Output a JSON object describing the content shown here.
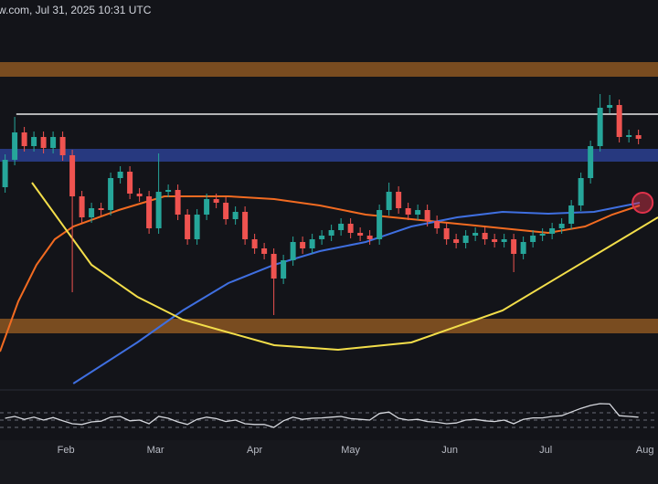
{
  "header": {
    "text": "w.com, Jul 31, 2025 10:31 UTC"
  },
  "chart_data": {
    "type": "candlestick",
    "up_color": "#26a69a",
    "down_color": "#ef5350",
    "xlim": [
      10.4,
      216.1
    ],
    "xticks": [
      {
        "value": 31,
        "label": "Feb"
      },
      {
        "value": 59,
        "label": "Mar"
      },
      {
        "value": 90,
        "label": "Apr"
      },
      {
        "value": 120,
        "label": "May"
      },
      {
        "value": 151,
        "label": "Jun"
      },
      {
        "value": 181,
        "label": "Jul"
      },
      {
        "value": 212,
        "label": "Aug"
      }
    ],
    "ylim": [
      60,
      144
    ],
    "x": [
      12,
      15,
      18,
      21,
      24,
      27,
      30,
      33,
      36,
      39,
      42,
      45,
      48,
      51,
      54,
      57,
      60,
      63,
      66,
      69,
      72,
      75,
      78,
      81,
      84,
      87,
      90,
      93,
      96,
      99,
      102,
      105,
      108,
      111,
      114,
      117,
      120,
      123,
      126,
      129,
      132,
      135,
      138,
      141,
      144,
      147,
      150,
      153,
      156,
      159,
      162,
      165,
      168,
      171,
      174,
      177,
      180,
      183,
      186,
      189,
      192,
      195,
      198,
      201,
      204,
      207,
      210
    ],
    "candles": [
      [
        103.0,
        110.2,
        101.8,
        109.0
      ],
      [
        109.0,
        118.4,
        107.8,
        115.0
      ],
      [
        115.0,
        116.2,
        110.8,
        112.0
      ],
      [
        112.0,
        115.2,
        110.8,
        114.0
      ],
      [
        114.0,
        115.2,
        110.4,
        111.6
      ],
      [
        111.6,
        115.2,
        110.4,
        114.0
      ],
      [
        114.0,
        115.2,
        108.8,
        110.0
      ],
      [
        110.0,
        111.2,
        80.0,
        101.0
      ],
      [
        101.0,
        102.2,
        95.2,
        96.4
      ],
      [
        96.4,
        99.6,
        95.2,
        98.4
      ],
      [
        98.4,
        99.6,
        96.8,
        98.0
      ],
      [
        98.0,
        106.2,
        96.8,
        105.0
      ],
      [
        105.0,
        107.6,
        103.8,
        106.4
      ],
      [
        106.4,
        107.6,
        100.4,
        101.6
      ],
      [
        101.6,
        102.8,
        99.8,
        101.0
      ],
      [
        101.0,
        102.2,
        92.8,
        94.0
      ],
      [
        94.0,
        110.4,
        92.8,
        102.0
      ],
      [
        102.0,
        103.6,
        100.8,
        102.4
      ],
      [
        102.4,
        103.6,
        95.8,
        97.0
      ],
      [
        97.0,
        98.2,
        90.4,
        91.6
      ],
      [
        91.6,
        98.2,
        90.4,
        97.0
      ],
      [
        97.0,
        101.6,
        95.8,
        100.4
      ],
      [
        100.4,
        101.6,
        98.4,
        99.6
      ],
      [
        99.6,
        100.8,
        94.8,
        96.0
      ],
      [
        96.0,
        98.8,
        94.8,
        97.6
      ],
      [
        97.6,
        98.8,
        90.4,
        91.6
      ],
      [
        91.6,
        92.8,
        88.4,
        89.6
      ],
      [
        89.6,
        90.8,
        87.2,
        88.4
      ],
      [
        88.4,
        89.6,
        75.0,
        83.0
      ],
      [
        83.0,
        88.2,
        81.8,
        87.0
      ],
      [
        87.0,
        92.2,
        85.8,
        91.0
      ],
      [
        91.0,
        92.2,
        88.4,
        89.6
      ],
      [
        89.6,
        92.8,
        88.4,
        91.6
      ],
      [
        91.6,
        93.6,
        90.4,
        92.4
      ],
      [
        92.4,
        94.8,
        91.2,
        93.6
      ],
      [
        93.6,
        96.2,
        92.4,
        95.0
      ],
      [
        95.0,
        96.2,
        91.8,
        93.0
      ],
      [
        93.0,
        94.2,
        91.2,
        92.4
      ],
      [
        92.4,
        93.6,
        90.4,
        91.6
      ],
      [
        91.6,
        99.2,
        90.4,
        98.0
      ],
      [
        98.0,
        104.0,
        96.8,
        102.0
      ],
      [
        102.0,
        103.2,
        97.2,
        98.4
      ],
      [
        98.4,
        99.6,
        95.8,
        97.0
      ],
      [
        97.0,
        99.2,
        95.8,
        98.0
      ],
      [
        98.0,
        99.2,
        94.4,
        95.6
      ],
      [
        95.6,
        96.8,
        92.8,
        94.0
      ],
      [
        94.0,
        95.2,
        90.4,
        91.6
      ],
      [
        91.6,
        92.8,
        89.6,
        90.8
      ],
      [
        90.8,
        93.6,
        89.6,
        92.4
      ],
      [
        92.4,
        94.2,
        91.2,
        93.0
      ],
      [
        93.0,
        94.2,
        90.4,
        91.6
      ],
      [
        91.6,
        92.8,
        89.8,
        91.0
      ],
      [
        91.0,
        92.8,
        89.8,
        91.6
      ],
      [
        91.6,
        92.8,
        84.4,
        88.4
      ],
      [
        88.4,
        92.2,
        87.2,
        91.0
      ],
      [
        91.0,
        93.6,
        89.8,
        92.4
      ],
      [
        92.4,
        94.0,
        91.2,
        92.8
      ],
      [
        92.8,
        95.2,
        91.6,
        94.0
      ],
      [
        94.0,
        96.2,
        92.8,
        95.0
      ],
      [
        95.0,
        100.2,
        93.8,
        99.0
      ],
      [
        99.0,
        106.2,
        97.8,
        105.0
      ],
      [
        105.0,
        113.2,
        103.8,
        112.0
      ],
      [
        112.0,
        123.4,
        110.8,
        120.4
      ],
      [
        120.4,
        123.2,
        119.2,
        121.0
      ],
      [
        121.0,
        122.2,
        112.8,
        114.0
      ],
      [
        114.0,
        115.6,
        112.8,
        114.4
      ],
      [
        114.4,
        115.6,
        112.4,
        113.6
      ]
    ],
    "zones": [
      {
        "from": 127.2,
        "to": 130.4,
        "color": "#8c5622"
      },
      {
        "from": 108.6,
        "to": 111.4,
        "color": "#2c3f92"
      },
      {
        "from": 71.0,
        "to": 74.2,
        "color": "#8c5622"
      }
    ],
    "levels": [
      {
        "value": 119,
        "start": 15.5,
        "color": "#e8e8e8"
      }
    ],
    "lines": [
      {
        "color": "#f26b21",
        "x": [
          10.4,
          16.1,
          21.8,
          27.5,
          33.3,
          47.5,
          61.8,
          81.8,
          96.1,
          110.4,
          124.7,
          139.0,
          153.3,
          167.5,
          181.8,
          193.3,
          201.8,
          210.4
        ],
        "values": [
          67.0,
          78.0,
          86.0,
          91.6,
          94.4,
          98.0,
          101.0,
          101.0,
          100.4,
          99.0,
          97.0,
          96.0,
          95.0,
          94.0,
          93.0,
          94.4,
          97.0,
          99.0
        ]
      },
      {
        "color": "#3f6fe0",
        "x": [
          33.3,
          53.3,
          67.5,
          81.8,
          96.1,
          110.4,
          124.7,
          139.0,
          153.3,
          167.5,
          181.8,
          196.1,
          210.4
        ],
        "values": [
          60.0,
          69.0,
          76.0,
          82.0,
          86.0,
          89.0,
          91.0,
          94.4,
          96.4,
          97.6,
          97.2,
          97.6,
          99.6
        ]
      },
      {
        "color": "#f3de4a",
        "x": [
          20.4,
          39.0,
          53.3,
          67.5,
          96.1,
          116.1,
          139.0,
          167.5,
          196.1,
          216.1
        ],
        "values": [
          104.0,
          86.0,
          79.0,
          74.0,
          68.4,
          67.4,
          69.0,
          76.0,
          88.0,
          96.4
        ]
      }
    ],
    "marker": {
      "x": 211.3,
      "value": 99.6,
      "color": "#e0324b"
    },
    "rsi": {
      "ylim": [
        0,
        100
      ],
      "levels": [
        70,
        50,
        30
      ],
      "color": "#d6d8de",
      "values": [
        55,
        60,
        52,
        58,
        50,
        57,
        48,
        40,
        38,
        45,
        47,
        58,
        60,
        48,
        50,
        40,
        60,
        55,
        45,
        38,
        52,
        58,
        54,
        46,
        50,
        40,
        38,
        38,
        30,
        48,
        58,
        52,
        55,
        56,
        58,
        60,
        54,
        52,
        50,
        68,
        72,
        55,
        50,
        52,
        46,
        44,
        40,
        42,
        50,
        52,
        48,
        46,
        50,
        40,
        52,
        56,
        56,
        60,
        62,
        72,
        82,
        90,
        95,
        94,
        62,
        60,
        58
      ]
    }
  }
}
